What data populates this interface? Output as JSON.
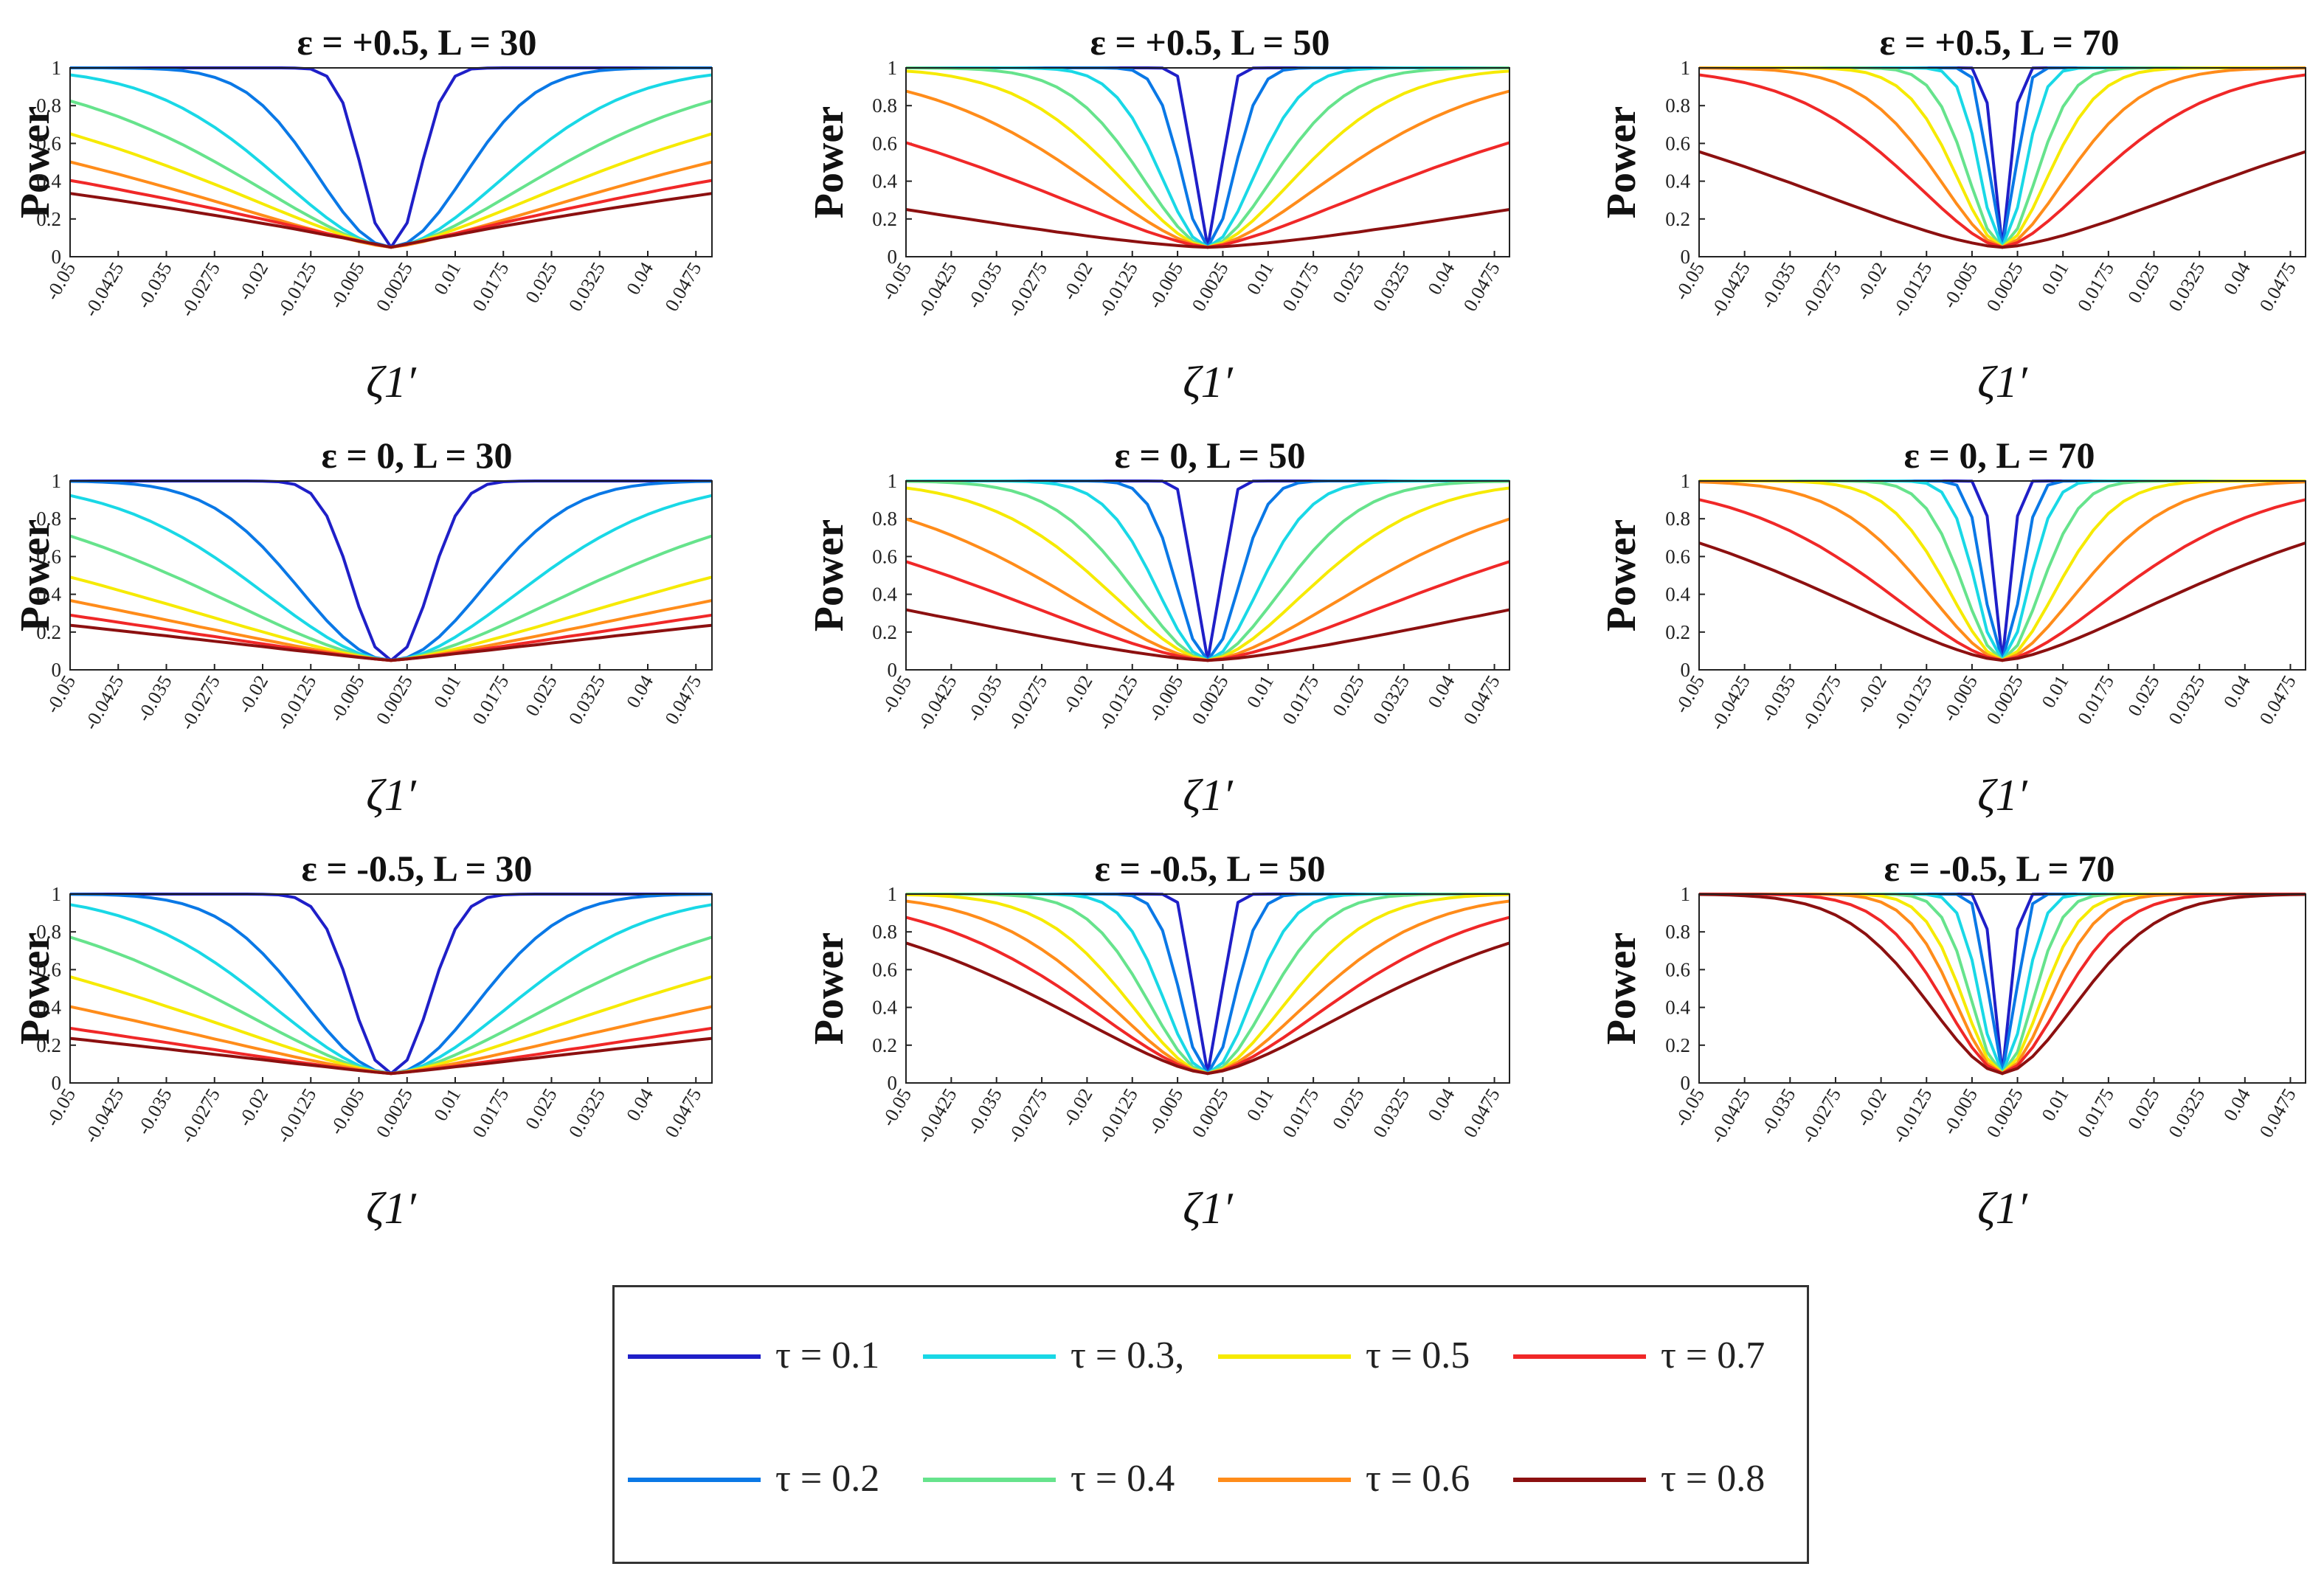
{
  "colors": {
    "0.1": "#1f1fc8",
    "0.2": "#0a78e6",
    "0.3": "#19d8e6",
    "0.4": "#66e38c",
    "0.5": "#f6ea00",
    "0.6": "#ff8c1a",
    "0.7": "#f02828",
    "0.8": "#8c1010"
  },
  "chart_data": [
    {
      "id": "p_pos05_30",
      "type": "line",
      "title": "ε = +0.5, L = 30",
      "ylabel": "Power",
      "xlabel": "ζ1′",
      "ylim": [
        0,
        1
      ],
      "x_ticks": [
        "-0.05",
        "-0.0425",
        "-0.035",
        "-0.0275",
        "-0.02",
        "-0.0125",
        "-0.005",
        "0.0025",
        "0.01",
        "0.0175",
        "0.025",
        "0.0325",
        "0.04",
        "0.0475"
      ],
      "y_ticks": [
        "0",
        "0.2",
        "0.4",
        "0.6",
        "0.8",
        "1"
      ],
      "params": {
        "w": [
          0.006,
          0.016,
          0.026,
          0.036,
          0.05,
          0.07,
          0.1,
          0.14
        ],
        "p": [
          2.2,
          2,
          1.8,
          1.6,
          1.4,
          1.3,
          1.1,
          1.0
        ]
      },
      "series": []
    },
    {
      "id": "p_pos05_50",
      "type": "line",
      "title": "ε = +0.5, L = 50",
      "ylabel": "Power",
      "xlabel": "ζ1′",
      "ylim": [
        0,
        1
      ],
      "x_ticks": [
        "-0.05",
        "-0.0425",
        "-0.035",
        "-0.0275",
        "-0.02",
        "-0.0125",
        "-0.005",
        "0.0025",
        "0.01",
        "0.0175",
        "0.025",
        "0.0325",
        "0.04",
        "0.0475"
      ],
      "y_ticks": [
        "0",
        "0.2",
        "0.4",
        "0.6",
        "0.8",
        "1"
      ],
      "params": {
        "w": [
          0.003,
          0.006,
          0.011,
          0.016,
          0.022,
          0.032,
          0.055,
          0.14
        ],
        "p": [
          2.2,
          2,
          1.9,
          1.8,
          1.7,
          1.6,
          1.4,
          1.4
        ]
      },
      "series": []
    },
    {
      "id": "p_pos05_70",
      "type": "line",
      "title": "ε = +0.5, L = 70",
      "ylabel": "Power",
      "xlabel": "ζ1′",
      "ylim": [
        0,
        1
      ],
      "x_ticks": [
        "-0.05",
        "-0.0425",
        "-0.035",
        "-0.0275",
        "-0.02",
        "-0.0125",
        "-0.005",
        "0.0025",
        "0.01",
        "0.0175",
        "0.025",
        "0.0325",
        "0.04",
        "0.0475"
      ],
      "y_ticks": [
        "0",
        "0.2",
        "0.4",
        "0.6",
        "0.8",
        "1"
      ],
      "params": {
        "w": [
          0.002,
          0.003,
          0.005,
          0.008,
          0.011,
          0.016,
          0.024,
          0.06
        ],
        "p": [
          2.2,
          2.1,
          2,
          1.9,
          1.8,
          1.7,
          1.6,
          1.5
        ]
      },
      "series": []
    },
    {
      "id": "p_0_30",
      "type": "line",
      "title": "ε = 0, L = 30",
      "ylabel": "Power",
      "xlabel": "ζ1′",
      "ylim": [
        0,
        1
      ],
      "x_ticks": [
        "-0.05",
        "-0.0425",
        "-0.035",
        "-0.0275",
        "-0.02",
        "-0.0125",
        "-0.005",
        "0.0025",
        "0.01",
        "0.0175",
        "0.025",
        "0.0325",
        "0.04",
        "0.0475"
      ],
      "y_ticks": [
        "0",
        "0.2",
        "0.4",
        "0.6",
        "0.8",
        "1"
      ],
      "params": {
        "w": [
          0.008,
          0.02,
          0.03,
          0.045,
          0.07,
          0.1,
          0.14,
          0.2
        ],
        "p": [
          2.2,
          2,
          1.8,
          1.6,
          1.4,
          1.3,
          1.2,
          1.1
        ]
      },
      "series": []
    },
    {
      "id": "p_0_50",
      "type": "line",
      "title": "ε = 0, L = 50",
      "ylabel": "Power",
      "xlabel": "ζ1′",
      "ylim": [
        0,
        1
      ],
      "x_ticks": [
        "-0.05",
        "-0.0425",
        "-0.035",
        "-0.0275",
        "-0.02",
        "-0.0125",
        "-0.005",
        "0.0025",
        "0.01",
        "0.0175",
        "0.025",
        "0.0325",
        "0.04",
        "0.0475"
      ],
      "y_ticks": [
        "0",
        "0.2",
        "0.4",
        "0.6",
        "0.8",
        "1"
      ],
      "params": {
        "w": [
          0.003,
          0.007,
          0.012,
          0.018,
          0.025,
          0.038,
          0.058,
          0.11
        ],
        "p": [
          2.2,
          2,
          1.9,
          1.8,
          1.7,
          1.6,
          1.5,
          1.4
        ]
      },
      "series": []
    },
    {
      "id": "p_0_70",
      "type": "line",
      "title": "ε = 0, L = 70",
      "ylabel": "Power",
      "xlabel": "ζ1′",
      "ylim": [
        0,
        1
      ],
      "x_ticks": [
        "-0.05",
        "-0.0425",
        "-0.035",
        "-0.0275",
        "-0.02",
        "-0.0125",
        "-0.005",
        "0.0025",
        "0.01",
        "0.0175",
        "0.025",
        "0.0325",
        "0.04",
        "0.0475"
      ],
      "y_ticks": [
        "0",
        "0.2",
        "0.4",
        "0.6",
        "0.8",
        "1"
      ],
      "params": {
        "w": [
          0.002,
          0.004,
          0.006,
          0.009,
          0.013,
          0.019,
          0.03,
          0.048
        ],
        "p": [
          2.2,
          2.1,
          2,
          1.9,
          1.8,
          1.7,
          1.6,
          1.5
        ]
      },
      "series": []
    },
    {
      "id": "p_neg05_30",
      "type": "line",
      "title": "ε = -0.5, L = 30",
      "ylabel": "Power",
      "xlabel": "ζ1′",
      "ylim": [
        0,
        1
      ],
      "x_ticks": [
        "-0.05",
        "-0.0425",
        "-0.035",
        "-0.0275",
        "-0.02",
        "-0.0125",
        "-0.005",
        "0.0025",
        "0.01",
        "0.0175",
        "0.025",
        "0.0325",
        "0.04",
        "0.0475"
      ],
      "y_ticks": [
        "0",
        "0.2",
        "0.4",
        "0.6",
        "0.8",
        "1"
      ],
      "params": {
        "w": [
          0.008,
          0.019,
          0.028,
          0.04,
          0.06,
          0.09,
          0.14,
          0.2
        ],
        "p": [
          2.2,
          2,
          1.8,
          1.6,
          1.4,
          1.3,
          1.2,
          1.1
        ]
      },
      "series": []
    },
    {
      "id": "p_neg05_50",
      "type": "line",
      "title": "ε = -0.5, L = 50",
      "ylabel": "Power",
      "xlabel": "ζ1′",
      "ylim": [
        0,
        1
      ],
      "x_ticks": [
        "-0.05",
        "-0.0425",
        "-0.035",
        "-0.0275",
        "-0.02",
        "-0.0125",
        "-0.005",
        "0.0025",
        "0.01",
        "0.0175",
        "0.025",
        "0.0325",
        "0.04",
        "0.0475"
      ],
      "y_ticks": [
        "0",
        "0.2",
        "0.4",
        "0.6",
        "0.8",
        "1"
      ],
      "params": {
        "w": [
          0.003,
          0.006,
          0.01,
          0.014,
          0.019,
          0.025,
          0.032,
          0.042
        ],
        "p": [
          2.2,
          2.1,
          2,
          1.9,
          1.8,
          1.7,
          1.6,
          1.5
        ]
      },
      "series": []
    },
    {
      "id": "p_neg05_70",
      "type": "line",
      "title": "ε = -0.5, L = 70",
      "ylabel": "Power",
      "xlabel": "ζ1′",
      "ylim": [
        0,
        1
      ],
      "x_ticks": [
        "-0.05",
        "-0.0425",
        "-0.035",
        "-0.0275",
        "-0.02",
        "-0.0125",
        "-0.005",
        "0.0025",
        "0.01",
        "0.0175",
        "0.025",
        "0.0325",
        "0.04",
        "0.0475"
      ],
      "y_ticks": [
        "0",
        "0.2",
        "0.4",
        "0.6",
        "0.8",
        "1"
      ],
      "params": {
        "w": [
          0.002,
          0.003,
          0.005,
          0.007,
          0.009,
          0.011,
          0.014,
          0.018
        ],
        "p": [
          2.2,
          2.1,
          2,
          2,
          1.9,
          1.9,
          1.8,
          1.8
        ]
      },
      "series": []
    }
  ],
  "legend": {
    "entries": [
      {
        "tau": "0.1",
        "label": "τ = 0.1"
      },
      {
        "tau": "0.3",
        "label": "τ = 0.3,"
      },
      {
        "tau": "0.5",
        "label": "τ = 0.5"
      },
      {
        "tau": "0.7",
        "label": "τ = 0.7"
      },
      {
        "tau": "0.2",
        "label": "τ = 0.2"
      },
      {
        "tau": "0.4",
        "label": "τ = 0.4"
      },
      {
        "tau": "0.6",
        "label": "τ = 0.6"
      },
      {
        "tau": "0.8",
        "label": "τ = 0.8"
      }
    ]
  }
}
